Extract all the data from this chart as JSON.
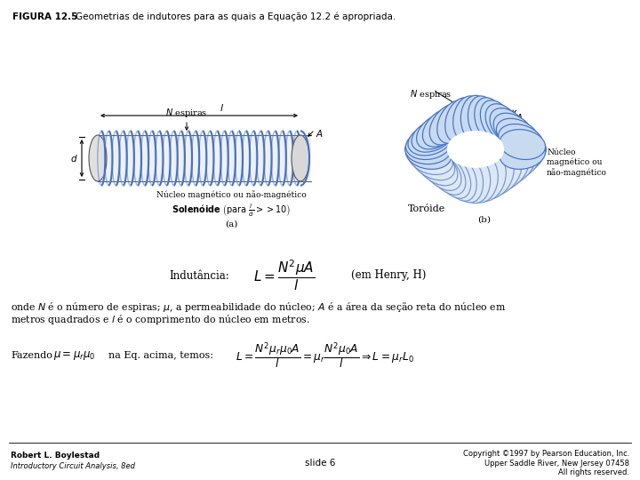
{
  "title_bold": "FIGURA 12.5",
  "title_normal": "    Geometrias de indutores para as quais a Equação 12.2 é apropriada.",
  "bg_color": "#ffffff",
  "fig_width": 7.2,
  "fig_height": 5.4,
  "dpi": 100,
  "label_a": "(a)",
  "label_b": "(b)",
  "toroid_label": "Toróide",
  "inductance_label": "Indutância:",
  "inductance_unit": "(em Henry, H)",
  "body_text1": "onde $N$ é o número de espiras; $\\mu$, a permeabilidade do núcleo; $A$ é a área da seção reta do núcleo em",
  "body_text2": "metros quadrados e $l$ é o comprimento do núcleo em metros.",
  "footer_left1": "Robert L. Boylestad",
  "footer_left2": "Introductory Circuit Analysis, 8ed",
  "footer_center": "slide 6",
  "footer_right1": "Copyright ©1997 by Pearson Education, Inc.",
  "footer_right2": "Upper Saddle River, New Jersey 07458",
  "footer_right3": "All rights reserved.",
  "coil_color": "#4472c4",
  "coil_fill": "#c8daf0",
  "core_fill": "#e0e0e0",
  "text_color": "#000000"
}
